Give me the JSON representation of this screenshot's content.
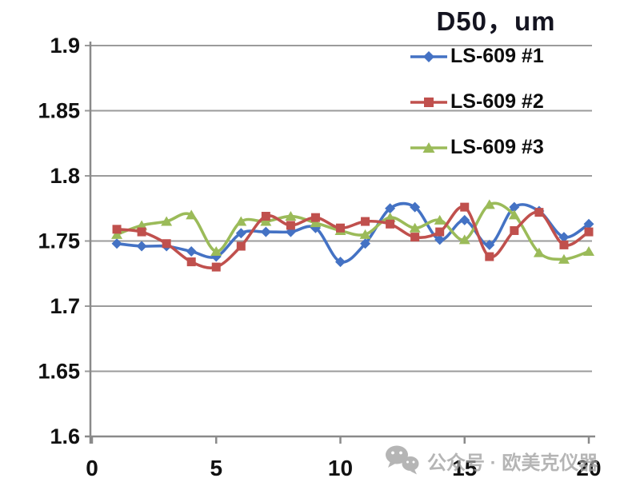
{
  "title": "D50，um",
  "watermark": {
    "icon": "wechat-icon",
    "text": "公众号 · 欧美克仪器"
  },
  "colors": {
    "series1_blue": "#4472c4",
    "series2_red": "#c0504d",
    "series3_green": "#9bbb59",
    "gridline": "#9b9b9b",
    "axis": "#8a8a8a",
    "tick_label": "#111111",
    "title_text": "#141420",
    "watermark_gray": "#a3a3a3"
  },
  "chart_data": {
    "type": "line",
    "title": "D50，um",
    "xlabel": "",
    "ylabel": "",
    "xlim": [
      0,
      20
    ],
    "ylim": [
      1.6,
      1.9
    ],
    "x_ticks": [
      0,
      5,
      10,
      15,
      20
    ],
    "x_tick_labels": [
      "0",
      "5",
      "10",
      "15",
      "20"
    ],
    "y_ticks": [
      1.9,
      1.85,
      1.8,
      1.75,
      1.7,
      1.65,
      1.6
    ],
    "y_tick_labels": [
      "1.9",
      "1.85",
      "1.8",
      "1.75",
      "1.7",
      "1.65",
      "1.6"
    ],
    "grid": true,
    "smoothed_lines": true,
    "legend_position": "top-right-inside",
    "x": [
      1,
      2,
      3,
      4,
      5,
      6,
      7,
      8,
      9,
      10,
      11,
      12,
      13,
      14,
      15,
      16,
      17,
      18,
      19,
      20
    ],
    "series": [
      {
        "name": "LS-609 #1",
        "marker": "diamond",
        "color": "#4472c4",
        "values": [
          1.748,
          1.746,
          1.746,
          1.742,
          1.738,
          1.756,
          1.757,
          1.757,
          1.76,
          1.734,
          1.748,
          1.775,
          1.776,
          1.751,
          1.766,
          1.747,
          1.776,
          1.773,
          1.753,
          1.763
        ]
      },
      {
        "name": "LS-609 #2",
        "marker": "square",
        "color": "#c0504d",
        "values": [
          1.759,
          1.757,
          1.748,
          1.734,
          1.73,
          1.746,
          1.769,
          1.762,
          1.768,
          1.76,
          1.765,
          1.763,
          1.753,
          1.757,
          1.776,
          1.738,
          1.758,
          1.772,
          1.747,
          1.757
        ]
      },
      {
        "name": "LS-609 #3",
        "marker": "triangle",
        "color": "#9bbb59",
        "values": [
          1.755,
          1.762,
          1.765,
          1.77,
          1.742,
          1.765,
          1.765,
          1.769,
          1.764,
          1.758,
          1.755,
          1.768,
          1.76,
          1.766,
          1.751,
          1.778,
          1.77,
          1.741,
          1.736,
          1.742
        ]
      }
    ]
  }
}
